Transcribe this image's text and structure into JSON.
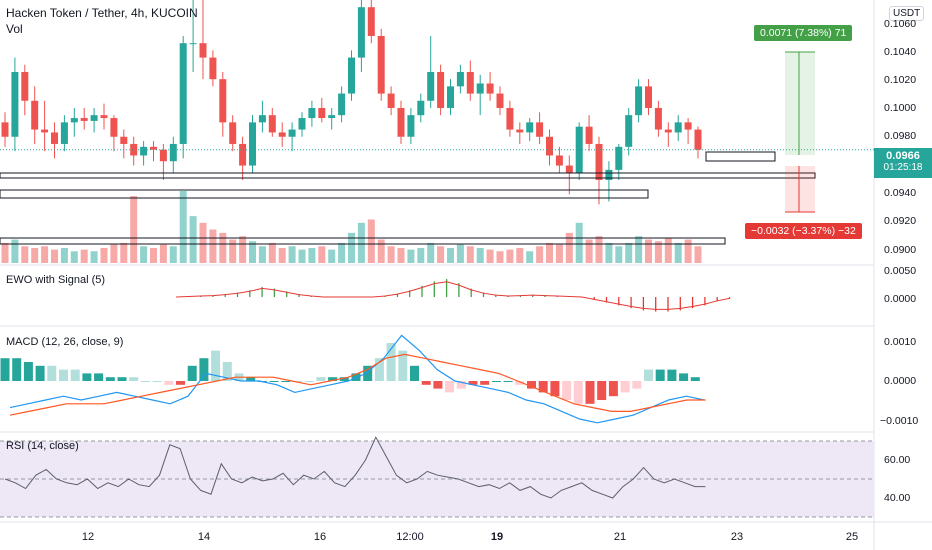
{
  "header": {
    "title": "Hacken Token / Tether, 4h, KUCOIN",
    "volume_label": "Vol",
    "currency": "USDT"
  },
  "price_axis": {
    "ticks": [
      "0.1060",
      "0.1040",
      "0.1020",
      "0.1000",
      "0.0980",
      "0.0940",
      "0.0920",
      "0.0900"
    ]
  },
  "last_price": {
    "value": "0.0966",
    "countdown": "01:25:18",
    "color": "#26a69a"
  },
  "measure": {
    "up_label": "0.0071 (7.38%) 71",
    "down_label": "−0.0032 (−3.37%) −32",
    "up_color": "#43a047",
    "down_color": "#e53935"
  },
  "panes": {
    "ewo": {
      "title": "EWO with Signal (5)",
      "ticks": [
        "0.0050",
        "0.0000"
      ]
    },
    "macd": {
      "title": "MACD (12, 26, close, 9)",
      "ticks": [
        "0.0010",
        "0.0000",
        "−0.0010"
      ]
    },
    "rsi": {
      "title": "RSI (14, close)",
      "ticks": [
        "60.00",
        "40.00"
      ]
    }
  },
  "time_axis": [
    "12",
    "14",
    "16",
    "12:00",
    "19",
    "21",
    "23",
    "25"
  ],
  "colors": {
    "up": "#26a69a",
    "down": "#ef5350",
    "rsi_bg": "#ede7f6",
    "rsi_line": "#5d5d6e",
    "macd_line": "#2196f3",
    "signal_line": "#ff5722"
  },
  "chart_data": {
    "type": "candlestick",
    "title": "Hacken Token / Tether, 4h, KUCOIN",
    "ylim": [
      0.0888,
      0.107
    ],
    "candles": [
      [
        0.0985,
        0.0992,
        0.0968,
        0.0975
      ],
      [
        0.0975,
        0.103,
        0.0965,
        0.102
      ],
      [
        0.102,
        0.1025,
        0.099,
        0.1
      ],
      [
        0.1,
        0.101,
        0.097,
        0.098
      ],
      [
        0.098,
        0.1,
        0.0965,
        0.0978
      ],
      [
        0.0978,
        0.0985,
        0.096,
        0.097
      ],
      [
        0.097,
        0.099,
        0.0965,
        0.0985
      ],
      [
        0.0985,
        0.0995,
        0.0975,
        0.0988
      ],
      [
        0.0988,
        0.0995,
        0.098,
        0.0986
      ],
      [
        0.0986,
        0.0995,
        0.0978,
        0.099
      ],
      [
        0.099,
        0.0998,
        0.098,
        0.0988
      ],
      [
        0.0988,
        0.099,
        0.0965,
        0.0975
      ],
      [
        0.0975,
        0.098,
        0.096,
        0.097
      ],
      [
        0.097,
        0.0975,
        0.0955,
        0.0962
      ],
      [
        0.0962,
        0.0972,
        0.0955,
        0.0968
      ],
      [
        0.0968,
        0.0972,
        0.0958,
        0.0966
      ],
      [
        0.0966,
        0.097,
        0.0945,
        0.0958
      ],
      [
        0.0958,
        0.0975,
        0.095,
        0.097
      ],
      [
        0.097,
        0.1045,
        0.096,
        0.104
      ],
      [
        0.104,
        0.107,
        0.102,
        0.104
      ],
      [
        0.104,
        0.107,
        0.1015,
        0.103
      ],
      [
        0.103,
        0.1035,
        0.101,
        0.1015
      ],
      [
        0.1015,
        0.102,
        0.0975,
        0.0985
      ],
      [
        0.0985,
        0.099,
        0.0965,
        0.097
      ],
      [
        0.097,
        0.0975,
        0.0945,
        0.0955
      ],
      [
        0.0955,
        0.099,
        0.095,
        0.0985
      ],
      [
        0.0985,
        0.1,
        0.0978,
        0.099
      ],
      [
        0.099,
        0.0995,
        0.0975,
        0.0978
      ],
      [
        0.0978,
        0.0985,
        0.0968,
        0.0975
      ],
      [
        0.0975,
        0.0985,
        0.0965,
        0.098
      ],
      [
        0.098,
        0.0992,
        0.0975,
        0.0988
      ],
      [
        0.0988,
        0.1,
        0.0982,
        0.0995
      ],
      [
        0.0995,
        0.1002,
        0.0985,
        0.0988
      ],
      [
        0.0988,
        0.0995,
        0.098,
        0.099
      ],
      [
        0.099,
        0.101,
        0.0985,
        0.1005
      ],
      [
        0.1005,
        0.1035,
        0.1,
        0.103
      ],
      [
        0.103,
        0.107,
        0.102,
        0.1065
      ],
      [
        0.1065,
        0.1075,
        0.104,
        0.1045
      ],
      [
        0.1045,
        0.105,
        0.1,
        0.1005
      ],
      [
        0.1005,
        0.101,
        0.099,
        0.0995
      ],
      [
        0.0995,
        0.1,
        0.097,
        0.0975
      ],
      [
        0.0975,
        0.0995,
        0.097,
        0.099
      ],
      [
        0.099,
        0.1005,
        0.0985,
        0.1
      ],
      [
        0.1,
        0.1045,
        0.0995,
        0.102
      ],
      [
        0.102,
        0.1025,
        0.099,
        0.0995
      ],
      [
        0.0995,
        0.1015,
        0.099,
        0.101
      ],
      [
        0.101,
        0.1025,
        0.1005,
        0.102
      ],
      [
        0.102,
        0.1028,
        0.1,
        0.1005
      ],
      [
        0.1005,
        0.1018,
        0.099,
        0.1012
      ],
      [
        0.1012,
        0.102,
        0.1,
        0.1005
      ],
      [
        0.1005,
        0.101,
        0.099,
        0.0995
      ],
      [
        0.0995,
        0.1,
        0.0975,
        0.098
      ],
      [
        0.098,
        0.0985,
        0.097,
        0.0978
      ],
      [
        0.0978,
        0.0988,
        0.0972,
        0.0985
      ],
      [
        0.0985,
        0.0992,
        0.097,
        0.0975
      ],
      [
        0.0975,
        0.098,
        0.0955,
        0.0962
      ],
      [
        0.0962,
        0.0968,
        0.095,
        0.0955
      ],
      [
        0.0955,
        0.0962,
        0.0935,
        0.095
      ],
      [
        0.095,
        0.0985,
        0.0945,
        0.0982
      ],
      [
        0.0982,
        0.099,
        0.0965,
        0.097
      ],
      [
        0.097,
        0.0975,
        0.0928,
        0.0945
      ],
      [
        0.0945,
        0.0958,
        0.093,
        0.0952
      ],
      [
        0.0952,
        0.097,
        0.0945,
        0.0968
      ],
      [
        0.0968,
        0.0995,
        0.0962,
        0.099
      ],
      [
        0.099,
        0.1015,
        0.0985,
        0.101
      ],
      [
        0.101,
        0.1015,
        0.099,
        0.0995
      ],
      [
        0.0995,
        0.1,
        0.0975,
        0.098
      ],
      [
        0.098,
        0.0985,
        0.0968,
        0.0978
      ],
      [
        0.0978,
        0.099,
        0.0972,
        0.0985
      ],
      [
        0.0985,
        0.0988,
        0.097,
        0.098
      ],
      [
        0.098,
        0.0982,
        0.096,
        0.0966
      ]
    ],
    "volume": [
      12,
      14,
      10,
      9,
      10,
      8,
      9,
      7,
      8,
      7,
      9,
      11,
      12,
      40,
      10,
      9,
      11,
      10,
      43,
      28,
      24,
      20,
      18,
      14,
      16,
      13,
      10,
      12,
      9,
      10,
      8,
      9,
      10,
      8,
      12,
      18,
      24,
      26,
      14,
      10,
      9,
      8,
      9,
      12,
      10,
      9,
      11,
      10,
      9,
      8,
      7,
      8,
      9,
      7,
      10,
      12,
      11,
      18,
      24,
      14,
      16,
      12,
      10,
      12,
      16,
      14,
      13,
      15,
      12,
      14,
      10
    ],
    "ewo": [
      0,
      0.0001,
      0.0002,
      0.0003,
      0.0005,
      0.0008,
      0.0012,
      0.0018,
      0.0015,
      0.001,
      0.0005,
      0.0002,
      0,
      0,
      0,
      0,
      0,
      0.0002,
      0.0006,
      0.0012,
      0.002,
      0.0028,
      0.0032,
      0.0025,
      0.0015,
      0.0008,
      0.0004,
      0.0002,
      0.0003,
      0.0004,
      0.0003,
      0.0002,
      0.0001,
      0,
      -0.0005,
      -0.001,
      -0.0015,
      -0.002,
      -0.0024,
      -0.0026,
      -0.0026,
      -0.0024,
      -0.002,
      -0.0015,
      -0.0008,
      -0.0003
    ],
    "macd_hist": [
      0.0006,
      0.0006,
      0.0005,
      0.0004,
      0.0004,
      0.0003,
      0.0003,
      0.0002,
      0.0002,
      0.0001,
      0.0001,
      0.0001,
      0,
      0,
      -0.0001,
      -0.0001,
      0.0004,
      0.0006,
      0.0008,
      0.0005,
      0.0002,
      0.0001,
      0,
      0,
      0,
      0,
      0,
      0.0001,
      0.0001,
      0.0001,
      0.0002,
      0.0004,
      0.0006,
      0.001,
      0.0008,
      0.0004,
      -0.0001,
      -0.0002,
      -0.0003,
      -0.0002,
      -0.0001,
      -0.0001,
      0,
      0,
      -0.0001,
      -0.0002,
      -0.0003,
      -0.0004,
      -0.0005,
      -0.0006,
      -0.0006,
      -0.0005,
      -0.0004,
      -0.0003,
      -0.0002,
      0.0003,
      0.0003,
      0.0003,
      0.0002,
      0.0001
    ],
    "macd_line": [
      -0.0007,
      -0.0006,
      -0.0005,
      -0.0004,
      -0.0005,
      -0.0004,
      -0.0003,
      -0.0004,
      -0.0005,
      -0.0006,
      -0.0004,
      0.0002,
      0.0001,
      0.0,
      0.0,
      -0.0001,
      -0.0003,
      -0.0002,
      -0.0001,
      0.0,
      0.0002,
      0.0006,
      0.0012,
      0.0008,
      0.0003,
      0.0,
      -0.0001,
      -0.0002,
      -0.0003,
      -0.0005,
      -0.0006,
      -0.0008,
      -0.001,
      -0.0011,
      -0.001,
      -0.0009,
      -0.0007,
      -0.0005,
      -0.0004,
      -0.0005
    ],
    "signal_line": [
      -0.0009,
      -0.0008,
      -0.0007,
      -0.0006,
      -0.0006,
      -0.0006,
      -0.0005,
      -0.0004,
      -0.0003,
      -0.0002,
      -0.0001,
      0.0,
      0.0001,
      0.0001,
      0.0001,
      0.0,
      -0.0001,
      0.0,
      0.0001,
      0.0003,
      0.0006,
      0.0007,
      0.0006,
      0.0005,
      0.0004,
      0.0003,
      0.0002,
      0.0,
      -0.0002,
      -0.0004,
      -0.0006,
      -0.0007,
      -0.0008,
      -0.0008,
      -0.0007,
      -0.0006,
      -0.0005,
      -0.0005
    ],
    "rsi": [
      50,
      48,
      45,
      52,
      55,
      50,
      48,
      47,
      50,
      45,
      48,
      46,
      50,
      47,
      46,
      52,
      68,
      66,
      50,
      44,
      42,
      58,
      50,
      48,
      51,
      49,
      50,
      53,
      47,
      52,
      50,
      54,
      48,
      46,
      52,
      60,
      72,
      62,
      52,
      48,
      50,
      54,
      52,
      51,
      50,
      48,
      46,
      47,
      45,
      48,
      44,
      46,
      42,
      40,
      44,
      46,
      48,
      44,
      42,
      40,
      46,
      50,
      56,
      50,
      48,
      50,
      48,
      46,
      46
    ],
    "rsi_levels": [
      70,
      50,
      30
    ]
  }
}
